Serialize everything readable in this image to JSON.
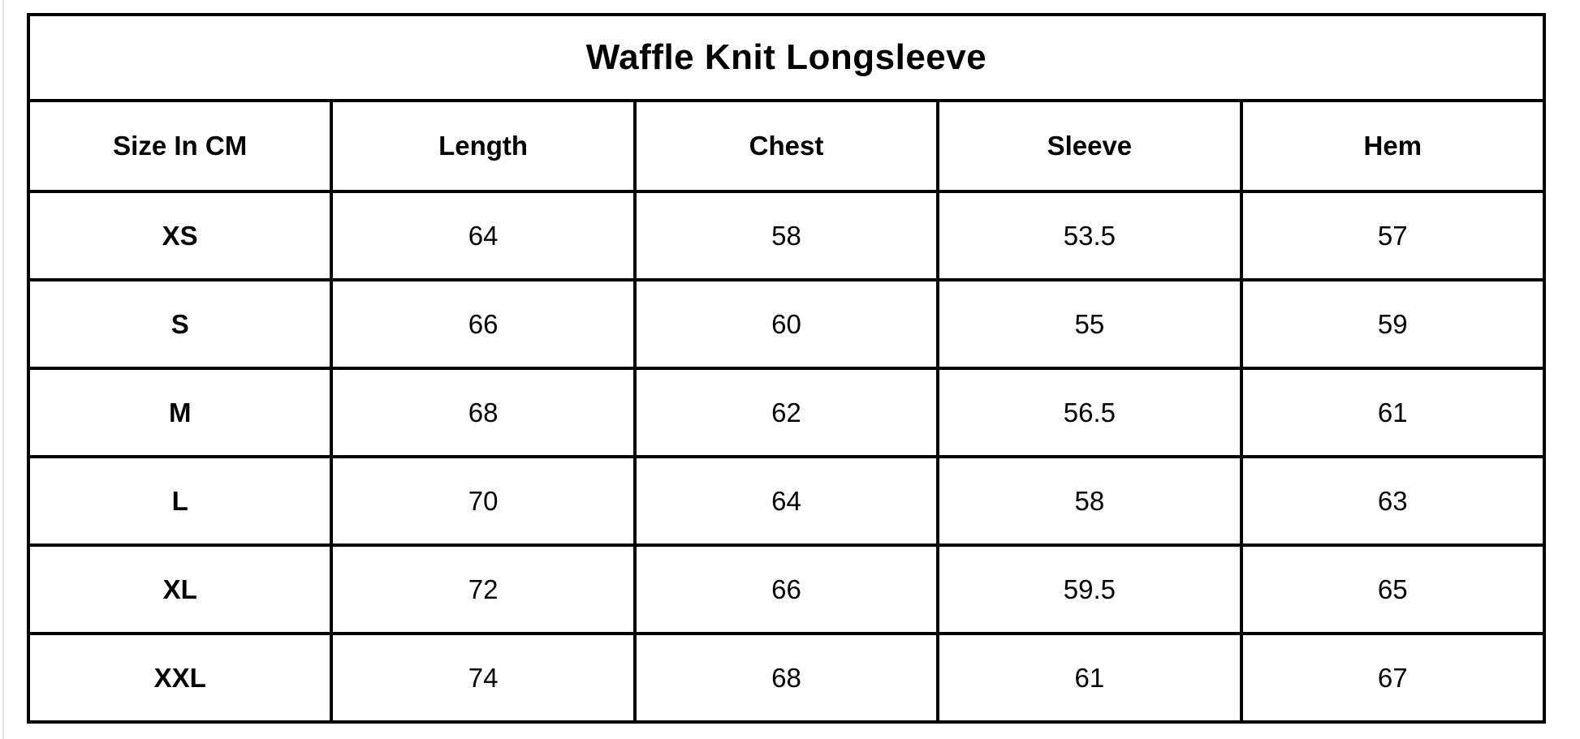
{
  "title": "Waffle Knit Longsleeve",
  "table": {
    "columns": [
      "Size In CM",
      "Length",
      "Chest",
      "Sleeve",
      "Hem"
    ],
    "rows": [
      {
        "size": "XS",
        "values": [
          "64",
          "58",
          "53.5",
          "57"
        ]
      },
      {
        "size": "S",
        "values": [
          "66",
          "60",
          "55",
          "59"
        ]
      },
      {
        "size": "M",
        "values": [
          "68",
          "62",
          "56.5",
          "61"
        ]
      },
      {
        "size": "L",
        "values": [
          "70",
          "64",
          "58",
          "63"
        ]
      },
      {
        "size": "XL",
        "values": [
          "72",
          "66",
          "59.5",
          "65"
        ]
      },
      {
        "size": "XXL",
        "values": [
          "74",
          "68",
          "61",
          "67"
        ]
      }
    ]
  },
  "chart_data": {
    "type": "table",
    "title": "Waffle Knit Longsleeve",
    "columns": [
      "Size In CM",
      "Length",
      "Chest",
      "Sleeve",
      "Hem"
    ],
    "rows": [
      [
        "XS",
        64,
        58,
        53.5,
        57
      ],
      [
        "S",
        66,
        60,
        55,
        59
      ],
      [
        "M",
        68,
        62,
        56.5,
        61
      ],
      [
        "L",
        70,
        64,
        58,
        63
      ],
      [
        "XL",
        72,
        66,
        59.5,
        65
      ],
      [
        "XXL",
        74,
        68,
        61,
        67
      ]
    ],
    "units": "cm",
    "layout": {
      "grid": true,
      "text_align": "center",
      "border_color": "#000000",
      "background": "#ffffff"
    }
  },
  "colors": {
    "text": "#000000",
    "border": "#000000",
    "background": "#ffffff",
    "page_edge": "#e3e3e3"
  }
}
